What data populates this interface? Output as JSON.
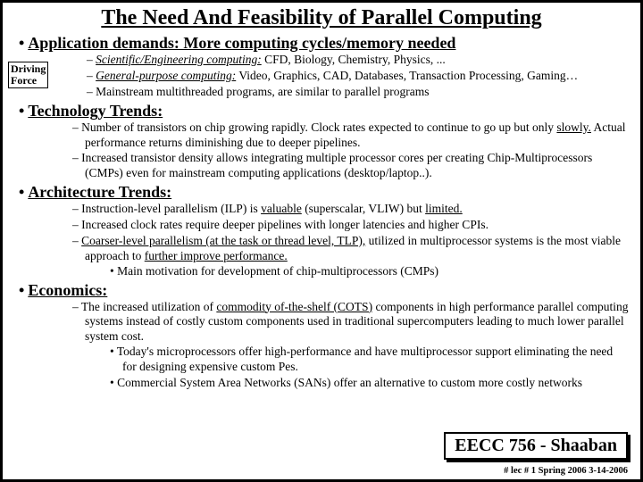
{
  "title": "The Need And Feasibility of Parallel Computing",
  "driving_box": "Driving\nForce",
  "sections": {
    "app": {
      "header": "Application demands:  More computing cycles/memory needed",
      "b1_lead": "Scientific/Engineering computing:",
      "b1_rest": " CFD, Biology, Chemistry, Physics, ...",
      "b2_lead": "General-purpose computing:",
      "b2_rest": " Video, Graphics, CAD, Databases, Transaction Processing, Gaming…",
      "b3": "Mainstream multithreaded programs, are similar to parallel programs"
    },
    "tech": {
      "header": "Technology Trends:",
      "b1a": "Number of transistors on chip growing rapidly.  Clock rates expected to continue to go up but only ",
      "b1_slowly": "slowly.",
      "b1b": "   Actual performance returns diminishing due to deeper pipelines.",
      "b2": "Increased transistor density allows integrating multiple processor cores per creating Chip-Multiprocessors (CMPs) even for mainstream computing applications (desktop/laptop..)."
    },
    "arch": {
      "header": "Architecture Trends:",
      "b1a": "Instruction-level parallelism (ILP) is ",
      "b1_val": "valuable",
      "b1b": " (superscalar, VLIW) but ",
      "b1_lim": "limited.",
      "b2": "Increased clock rates require deeper pipelines with longer latencies and higher CPIs.",
      "b3_lead": "Coarser-level parallelism (at the task or thread level, TLP),",
      "b3_mid": " utilized in multiprocessor systems is the most viable approach to ",
      "b3_imp": "further improve performance.",
      "b3_s1": "Main motivation for development of chip-multiprocessors (CMPs)"
    },
    "econ": {
      "header": "Economics:",
      "b1a": "The increased utilization of ",
      "b1_cots": "commodity of-the-shelf (COTS)",
      "b1b": " components in high performance parallel computing  systems instead of costly custom components used in traditional supercomputers leading to much lower parallel system cost.",
      "s1": "Today's microprocessors offer high-performance and have multiprocessor support eliminating the need for designing expensive custom Pes.",
      "s2": "Commercial System Area Networks (SANs) offer an alternative to custom more costly networks"
    }
  },
  "course_box": "EECC 756 - Shaaban",
  "footer": "#  lec # 1     Spring 2006   3-14-2006"
}
